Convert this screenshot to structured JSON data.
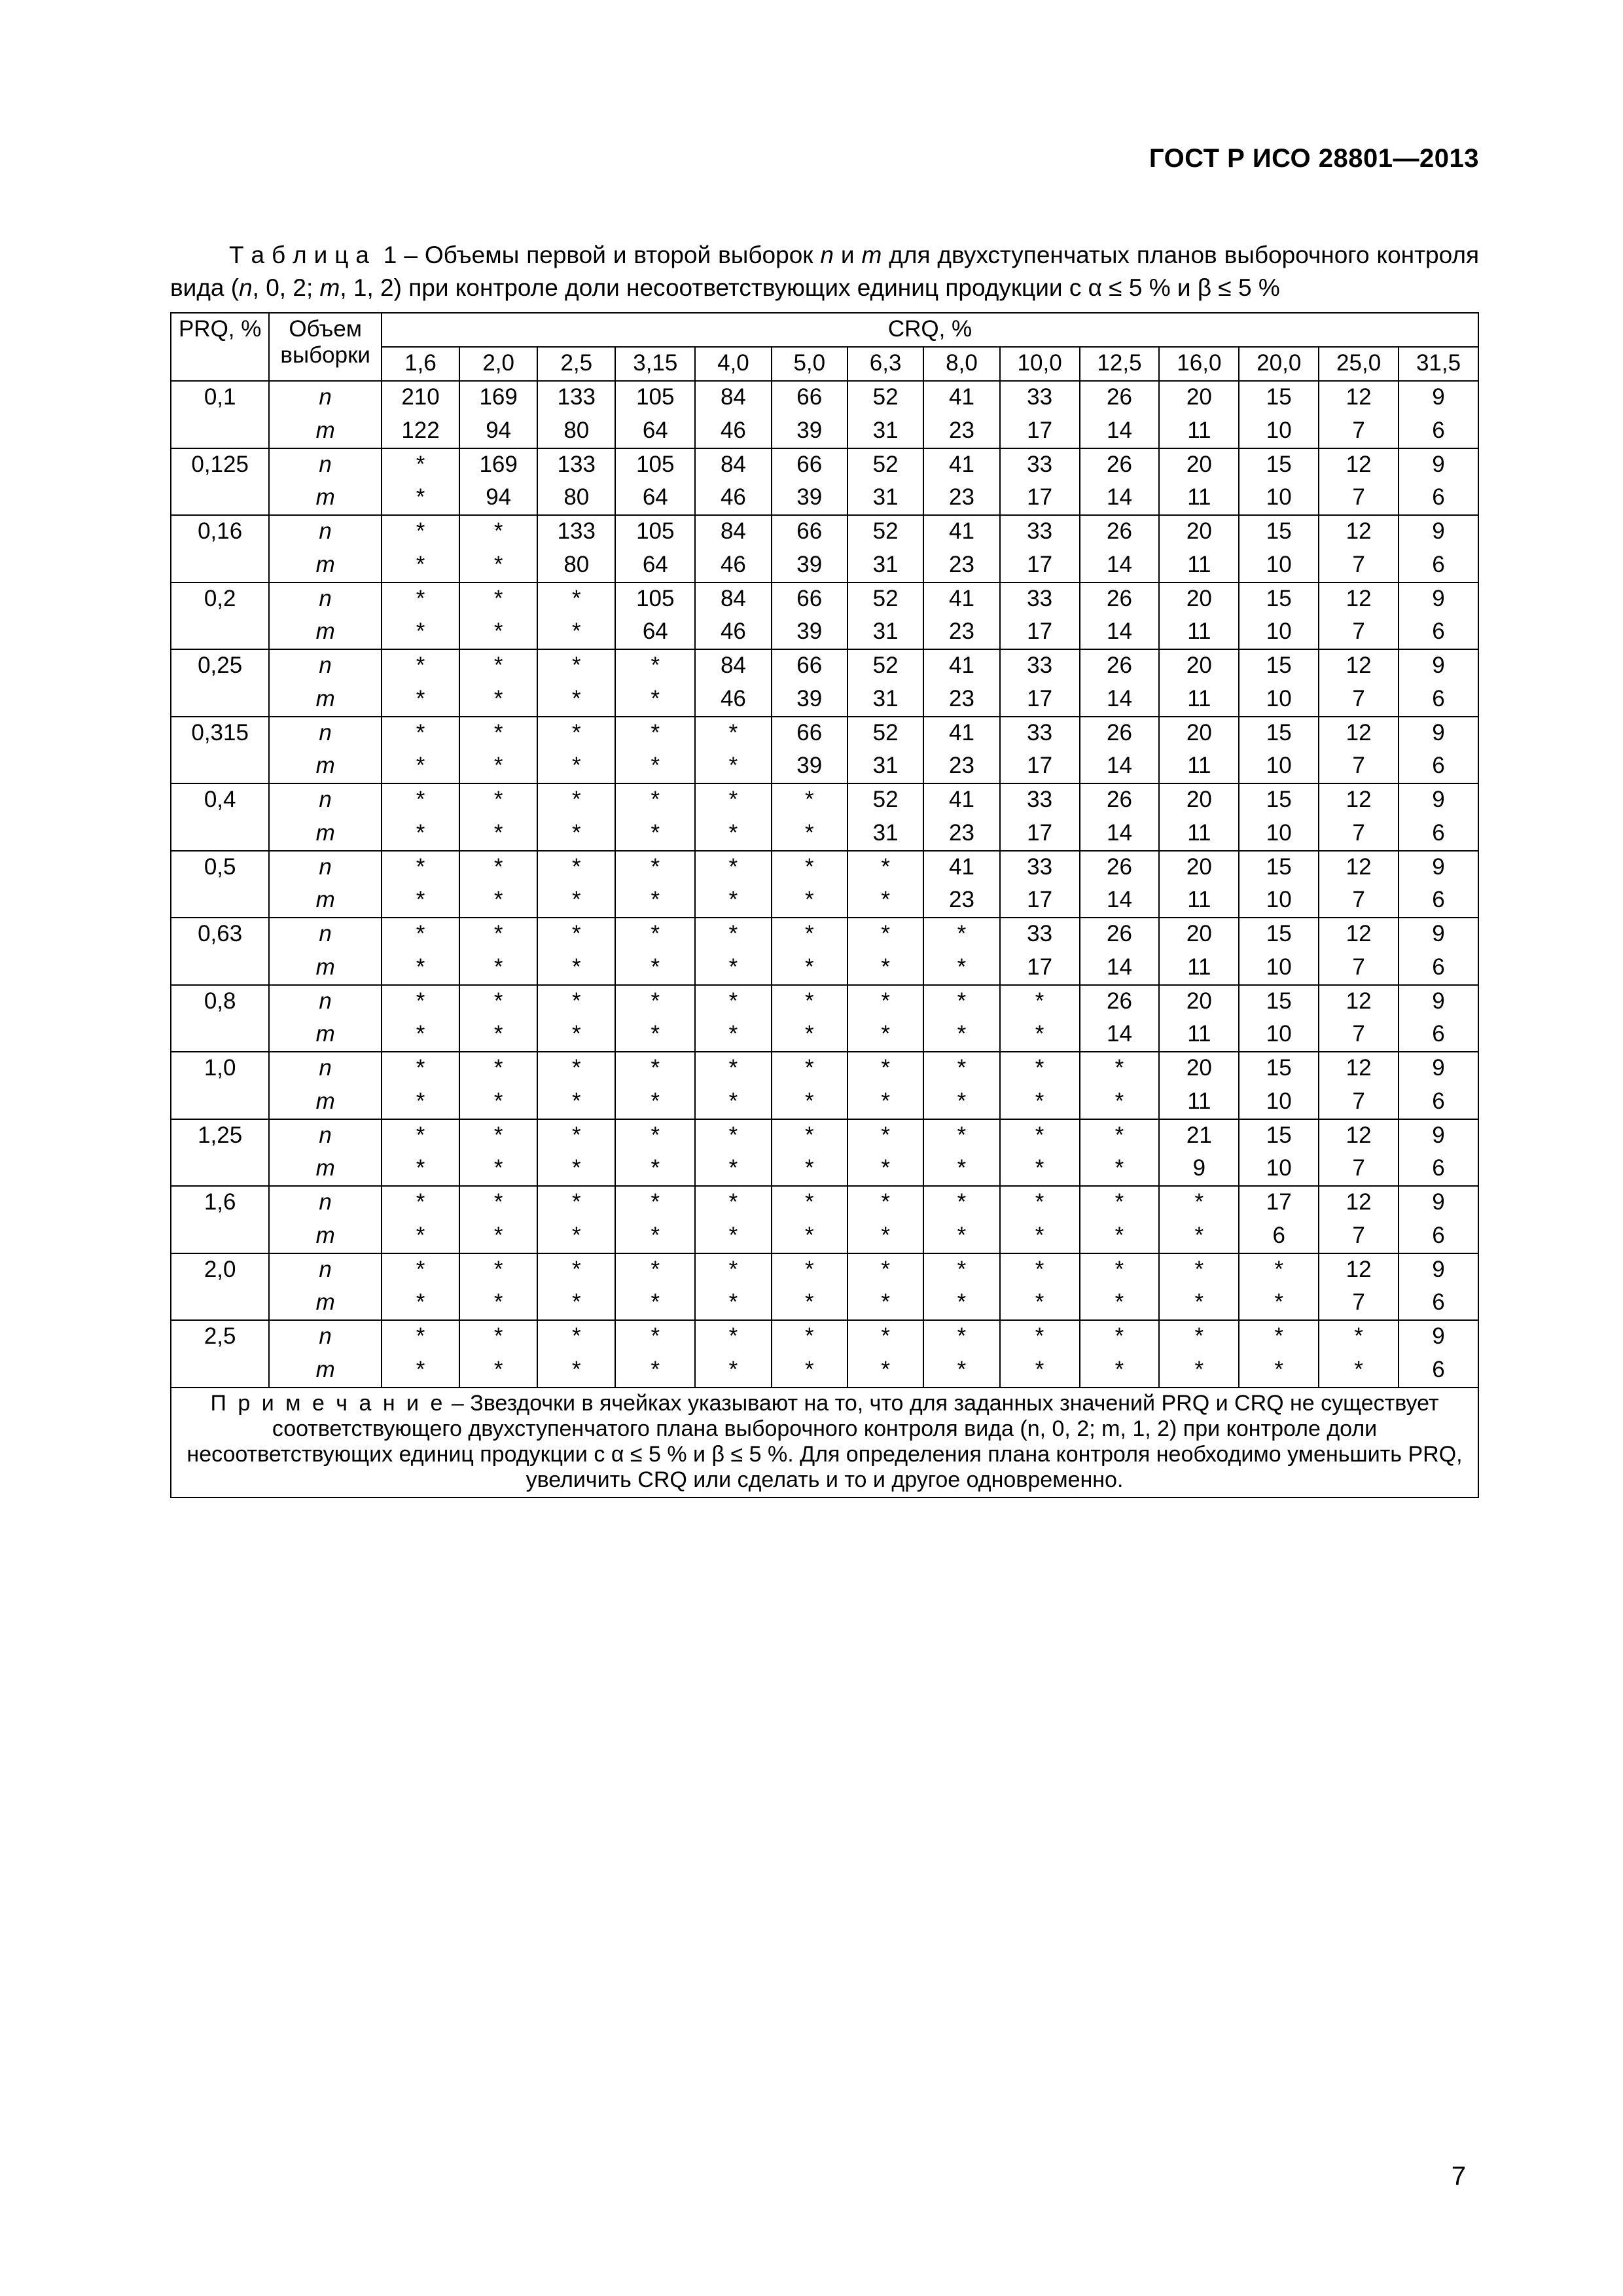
{
  "doc_id": "ГОСТ Р ИСО 28801—2013",
  "caption_lead": "Т а б л и ц а  1",
  "caption_body_1": " – Объемы первой и второй выборок ",
  "caption_n": "n",
  "caption_and": " и ",
  "caption_m": "m",
  "caption_body_2": " для двухступенчатых планов выборочного контроля вида (",
  "caption_body_3": ", 0, 2; ",
  "caption_body_4": ", 1, 2) при контроле доли несоответствующих единиц продукции с α ≤ 5 % и β ≤ 5 %",
  "header_prq": "PRQ, %",
  "header_vol1": "Объем",
  "header_vol2": "выборки",
  "header_crq": "CRQ, %",
  "crq_cols": [
    "1,6",
    "2,0",
    "2,5",
    "3,15",
    "4,0",
    "5,0",
    "6,3",
    "8,0",
    "10,0",
    "12,5",
    "16,0",
    "20,0",
    "25,0",
    "31,5"
  ],
  "rows": [
    {
      "prq": "0,1",
      "n": [
        "210",
        "169",
        "133",
        "105",
        "84",
        "66",
        "52",
        "41",
        "33",
        "26",
        "20",
        "15",
        "12",
        "9"
      ],
      "m": [
        "122",
        "94",
        "80",
        "64",
        "46",
        "39",
        "31",
        "23",
        "17",
        "14",
        "11",
        "10",
        "7",
        "6"
      ]
    },
    {
      "prq": "0,125",
      "n": [
        "*",
        "169",
        "133",
        "105",
        "84",
        "66",
        "52",
        "41",
        "33",
        "26",
        "20",
        "15",
        "12",
        "9"
      ],
      "m": [
        "*",
        "94",
        "80",
        "64",
        "46",
        "39",
        "31",
        "23",
        "17",
        "14",
        "11",
        "10",
        "7",
        "6"
      ]
    },
    {
      "prq": "0,16",
      "n": [
        "*",
        "*",
        "133",
        "105",
        "84",
        "66",
        "52",
        "41",
        "33",
        "26",
        "20",
        "15",
        "12",
        "9"
      ],
      "m": [
        "*",
        "*",
        "80",
        "64",
        "46",
        "39",
        "31",
        "23",
        "17",
        "14",
        "11",
        "10",
        "7",
        "6"
      ]
    },
    {
      "prq": "0,2",
      "n": [
        "*",
        "*",
        "*",
        "105",
        "84",
        "66",
        "52",
        "41",
        "33",
        "26",
        "20",
        "15",
        "12",
        "9"
      ],
      "m": [
        "*",
        "*",
        "*",
        "64",
        "46",
        "39",
        "31",
        "23",
        "17",
        "14",
        "11",
        "10",
        "7",
        "6"
      ]
    },
    {
      "prq": "0,25",
      "n": [
        "*",
        "*",
        "*",
        "*",
        "84",
        "66",
        "52",
        "41",
        "33",
        "26",
        "20",
        "15",
        "12",
        "9"
      ],
      "m": [
        "*",
        "*",
        "*",
        "*",
        "46",
        "39",
        "31",
        "23",
        "17",
        "14",
        "11",
        "10",
        "7",
        "6"
      ]
    },
    {
      "prq": "0,315",
      "n": [
        "*",
        "*",
        "*",
        "*",
        "*",
        "66",
        "52",
        "41",
        "33",
        "26",
        "20",
        "15",
        "12",
        "9"
      ],
      "m": [
        "*",
        "*",
        "*",
        "*",
        "*",
        "39",
        "31",
        "23",
        "17",
        "14",
        "11",
        "10",
        "7",
        "6"
      ]
    },
    {
      "prq": "0,4",
      "n": [
        "*",
        "*",
        "*",
        "*",
        "*",
        "*",
        "52",
        "41",
        "33",
        "26",
        "20",
        "15",
        "12",
        "9"
      ],
      "m": [
        "*",
        "*",
        "*",
        "*",
        "*",
        "*",
        "31",
        "23",
        "17",
        "14",
        "11",
        "10",
        "7",
        "6"
      ]
    },
    {
      "prq": "0,5",
      "n": [
        "*",
        "*",
        "*",
        "*",
        "*",
        "*",
        "*",
        "41",
        "33",
        "26",
        "20",
        "15",
        "12",
        "9"
      ],
      "m": [
        "*",
        "*",
        "*",
        "*",
        "*",
        "*",
        "*",
        "23",
        "17",
        "14",
        "11",
        "10",
        "7",
        "6"
      ]
    },
    {
      "prq": "0,63",
      "n": [
        "*",
        "*",
        "*",
        "*",
        "*",
        "*",
        "*",
        "*",
        "33",
        "26",
        "20",
        "15",
        "12",
        "9"
      ],
      "m": [
        "*",
        "*",
        "*",
        "*",
        "*",
        "*",
        "*",
        "*",
        "17",
        "14",
        "11",
        "10",
        "7",
        "6"
      ]
    },
    {
      "prq": "0,8",
      "n": [
        "*",
        "*",
        "*",
        "*",
        "*",
        "*",
        "*",
        "*",
        "*",
        "26",
        "20",
        "15",
        "12",
        "9"
      ],
      "m": [
        "*",
        "*",
        "*",
        "*",
        "*",
        "*",
        "*",
        "*",
        "*",
        "14",
        "11",
        "10",
        "7",
        "6"
      ]
    },
    {
      "prq": "1,0",
      "n": [
        "*",
        "*",
        "*",
        "*",
        "*",
        "*",
        "*",
        "*",
        "*",
        "*",
        "20",
        "15",
        "12",
        "9"
      ],
      "m": [
        "*",
        "*",
        "*",
        "*",
        "*",
        "*",
        "*",
        "*",
        "*",
        "*",
        "11",
        "10",
        "7",
        "6"
      ]
    },
    {
      "prq": "1,25",
      "n": [
        "*",
        "*",
        "*",
        "*",
        "*",
        "*",
        "*",
        "*",
        "*",
        "*",
        "21",
        "15",
        "12",
        "9"
      ],
      "m": [
        "*",
        "*",
        "*",
        "*",
        "*",
        "*",
        "*",
        "*",
        "*",
        "*",
        "9",
        "10",
        "7",
        "6"
      ]
    },
    {
      "prq": "1,6",
      "n": [
        "*",
        "*",
        "*",
        "*",
        "*",
        "*",
        "*",
        "*",
        "*",
        "*",
        "*",
        "17",
        "12",
        "9"
      ],
      "m": [
        "*",
        "*",
        "*",
        "*",
        "*",
        "*",
        "*",
        "*",
        "*",
        "*",
        "*",
        "6",
        "7",
        "6"
      ]
    },
    {
      "prq": "2,0",
      "n": [
        "*",
        "*",
        "*",
        "*",
        "*",
        "*",
        "*",
        "*",
        "*",
        "*",
        "*",
        "*",
        "12",
        "9"
      ],
      "m": [
        "*",
        "*",
        "*",
        "*",
        "*",
        "*",
        "*",
        "*",
        "*",
        "*",
        "*",
        "*",
        "7",
        "6"
      ]
    },
    {
      "prq": "2,5",
      "n": [
        "*",
        "*",
        "*",
        "*",
        "*",
        "*",
        "*",
        "*",
        "*",
        "*",
        "*",
        "*",
        "*",
        "9"
      ],
      "m": [
        "*",
        "*",
        "*",
        "*",
        "*",
        "*",
        "*",
        "*",
        "*",
        "*",
        "*",
        "*",
        "*",
        "6"
      ]
    }
  ],
  "note_lead": "П р и м е ч а н и е",
  "note_body": " – Звездочки в ячейках указывают на то, что для заданных значений PRQ и CRQ не существует соответствующего двухступенчатого плана выборочного контроля вида (n, 0, 2; m, 1, 2) при контроле доли несоответствующих единиц продукции с α ≤ 5 % и β ≤ 5 %. Для определения плана контроля необходимо уменьшить PRQ, увеличить CRQ или сделать и то и другое одновременно.",
  "page_number": "7",
  "symbol_n": "n",
  "symbol_m": "m",
  "colors": {
    "text": "#000000",
    "bg": "#ffffff",
    "border": "#000000"
  },
  "fontsizes": {
    "body": 37,
    "table": 35,
    "note": 34,
    "pagenum": 40,
    "docid": 40
  }
}
